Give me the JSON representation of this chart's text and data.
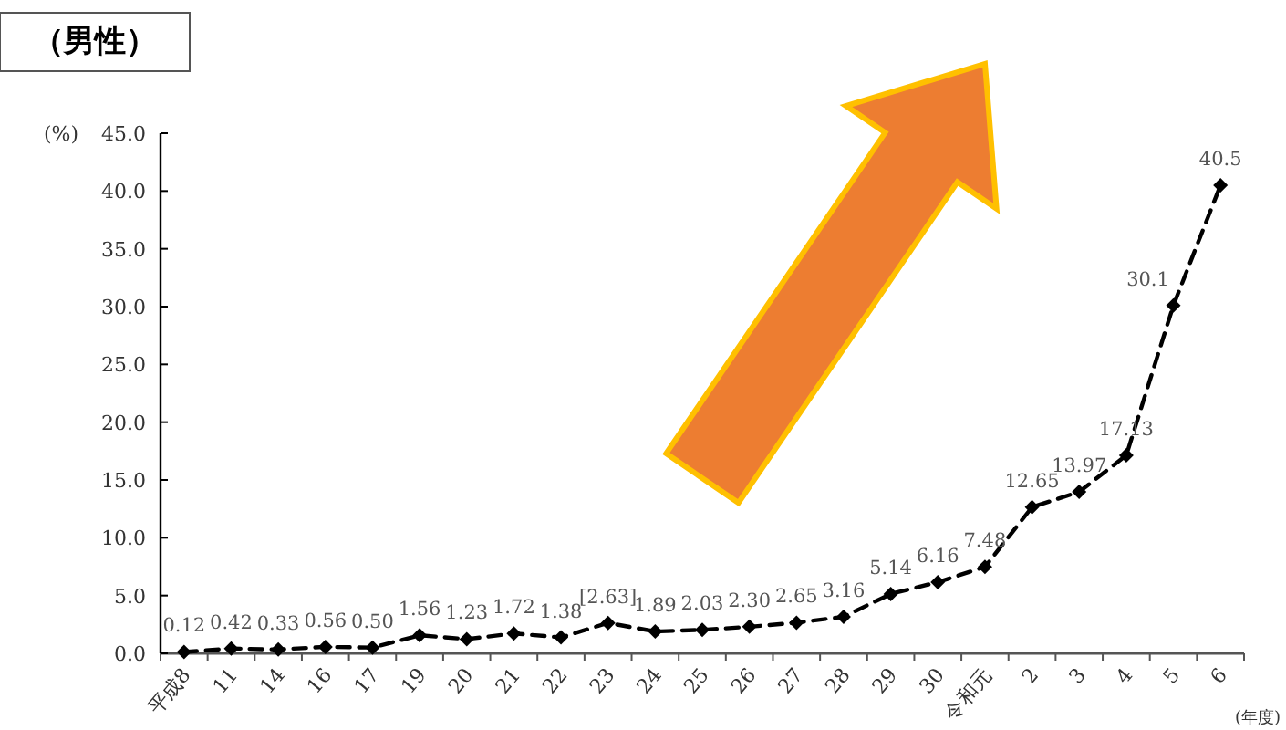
{
  "chart_data": {
    "type": "line",
    "title": "（男性）",
    "ylabel": "(%)",
    "xlabel": "(年度)",
    "categories": [
      "平成8",
      "11",
      "14",
      "16",
      "17",
      "19",
      "20",
      "21",
      "22",
      "23",
      "24",
      "25",
      "26",
      "27",
      "28",
      "29",
      "30",
      "令和元",
      "2",
      "3",
      "4",
      "5",
      "6"
    ],
    "series": [
      {
        "color": "#000000",
        "values": [
          0.12,
          0.42,
          0.33,
          0.56,
          0.5,
          1.56,
          1.23,
          1.72,
          1.38,
          2.63,
          1.89,
          2.03,
          2.3,
          2.65,
          3.16,
          5.14,
          6.16,
          7.48,
          12.65,
          13.97,
          17.13,
          30.1,
          40.5
        ],
        "value_labels": [
          "0.12",
          "0.42",
          "0.33",
          "0.56",
          "0.50",
          "1.56",
          "1.23",
          "1.72",
          "1.38",
          "[2.63]",
          "1.89",
          "2.03",
          "2.30",
          "2.65",
          "3.16",
          "5.14",
          "6.16",
          "7.48",
          "12.65",
          "13.97",
          "17.13",
          "30.1",
          "40.5"
        ]
      }
    ],
    "ylim": [
      0,
      45
    ],
    "yticks": [
      {
        "value": 0,
        "label": "0.0"
      },
      {
        "value": 5,
        "label": "5.0"
      },
      {
        "value": 10,
        "label": "10.0"
      },
      {
        "value": 15,
        "label": "15.0"
      },
      {
        "value": 20,
        "label": "20.0"
      },
      {
        "value": 25,
        "label": "25.0"
      },
      {
        "value": 30,
        "label": "30.0"
      },
      {
        "value": 35,
        "label": "35.0"
      },
      {
        "value": 40,
        "label": "40.0"
      },
      {
        "value": 45,
        "label": "45.0"
      }
    ],
    "grid": false,
    "marker": "diamond",
    "line_style": "dashed"
  }
}
